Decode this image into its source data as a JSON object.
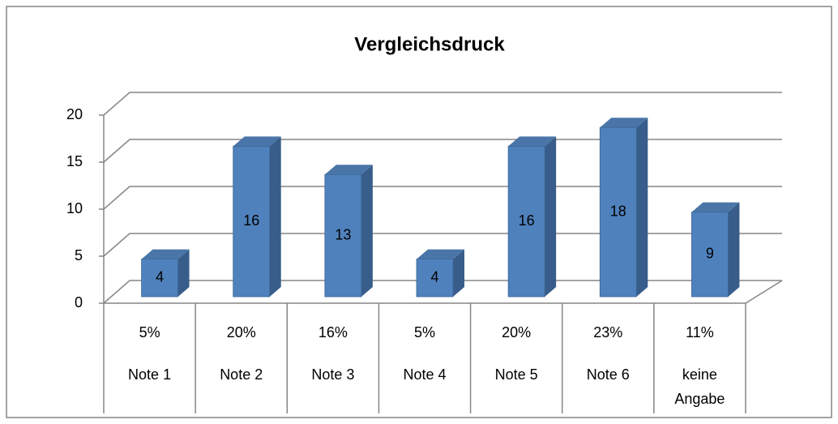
{
  "chart_data": {
    "type": "bar",
    "title": "Vergleichsdruck",
    "categories": [
      "Note 1",
      "Note 2",
      "Note 3",
      "Note 4",
      "Note 5",
      "Note 6",
      "keine Angabe"
    ],
    "category_labels": [
      "5%",
      "20%",
      "16%",
      "5%",
      "20%",
      "23%",
      "11%"
    ],
    "values": [
      4,
      16,
      13,
      4,
      16,
      18,
      9
    ],
    "color": "#4f81bd",
    "ylim": [
      0,
      20
    ],
    "yticks": [
      0,
      5,
      10,
      15,
      20
    ],
    "grid": true,
    "data_labels": true
  }
}
